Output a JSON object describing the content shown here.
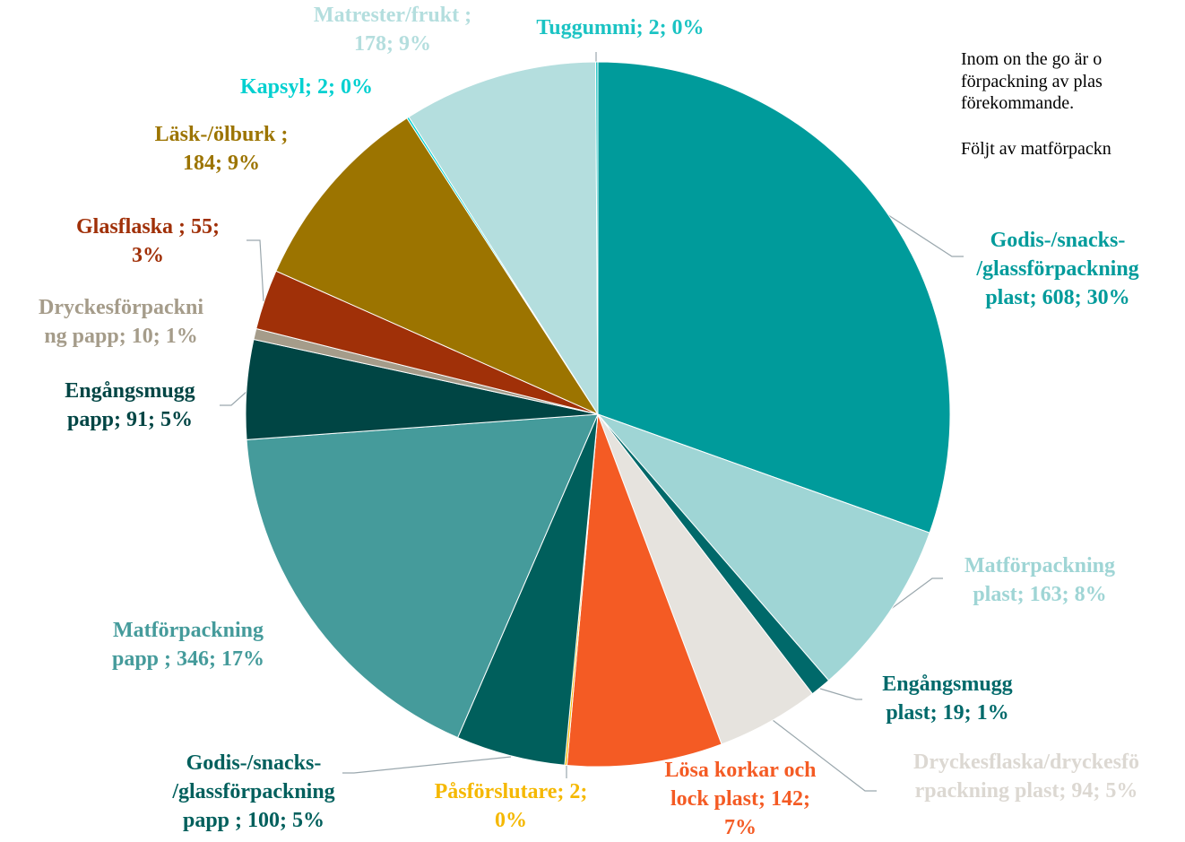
{
  "chart_data": {
    "type": "pie",
    "values": [
      608,
      163,
      19,
      94,
      142,
      2,
      100,
      346,
      91,
      10,
      55,
      184,
      2,
      178,
      2
    ],
    "value_labels": [
      [
        "Godis-/snacks-",
        "/glassförpackning",
        "plast; 608; 30%"
      ],
      [
        "Matförpackning",
        "plast; 163; 8%"
      ],
      [
        "Engångsmugg",
        "plast; 19; 1%"
      ],
      [
        "Dryckesflaska/dryckesfö",
        "rpackning  plast; 94; 5%"
      ],
      [
        "Lösa korkar och",
        "lock  plast; 142;",
        "7%"
      ],
      [
        "Påsförslutare; 2;",
        "0%"
      ],
      [
        "Godis-/snacks-",
        "/glassförpackning",
        "papp ; 100; 5%"
      ],
      [
        "Matförpackning",
        "papp ; 346; 17%"
      ],
      [
        "Engångsmugg",
        "papp; 91; 5%"
      ],
      [
        "Dryckesförpackni",
        "ng papp; 10; 1%"
      ],
      [
        "Glasflaska ; 55;",
        "3%"
      ],
      [
        "Läsk-/ölburk ;",
        "184; 9%"
      ],
      [
        "Kapsyl; 2; 0%"
      ],
      [
        "Matrester/frukt ;",
        "178; 9%"
      ],
      [
        "Tuggummi; 2; 0%"
      ]
    ],
    "colors": [
      "#009b9b",
      "#9fd5d5",
      "#00696a",
      "#e6e3de",
      "#f45b24",
      "#f5b800",
      "#005f5c",
      "#459b9b",
      "#004544",
      "#a59c8a",
      "#a03008",
      "#9c7400",
      "#00d0d0",
      "#b4dede",
      "#1bc3c3"
    ],
    "label_colors": [
      "#009b9b",
      "#9fd5d5",
      "#00696a",
      "#dcd8d2",
      "#f45b24",
      "#f5b800",
      "#005f5c",
      "#459b9b",
      "#004544",
      "#a59c8a",
      "#a03008",
      "#9c7400",
      "#00d0d0",
      "#b4dede",
      "#1bc3c3"
    ],
    "annotations": [
      "Inom on the go är o",
      "förpackning av plas",
      "förekommande.",
      "Följt av matförpackn"
    ]
  }
}
